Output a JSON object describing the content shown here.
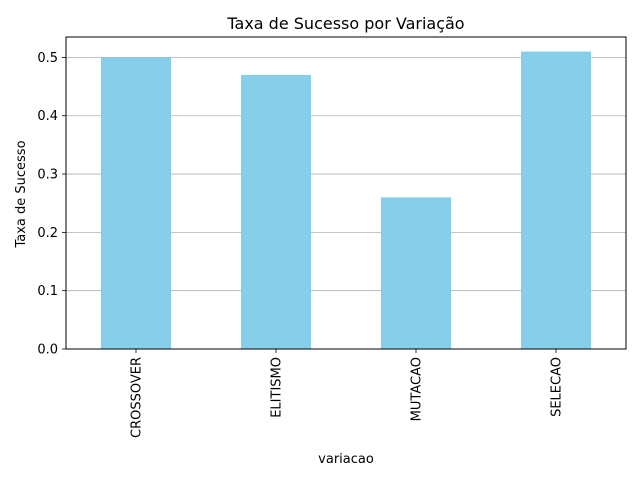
{
  "chart_data": {
    "type": "bar",
    "title": "Taxa de Sucesso por Variação",
    "xlabel": "variacao",
    "ylabel": "Taxa de Sucesso",
    "categories": [
      "CROSSOVER",
      "ELITISMO",
      "MUTACAO",
      "SELECAO"
    ],
    "values": [
      0.5,
      0.47,
      0.26,
      0.51
    ],
    "ylim": [
      0,
      0.535
    ],
    "yticks": [
      0.0,
      0.1,
      0.2,
      0.3,
      0.4,
      0.5
    ],
    "ytick_labels": [
      "0.0",
      "0.1",
      "0.2",
      "0.3",
      "0.4",
      "0.5"
    ],
    "grid": "y",
    "bar_color": "#87ceeb"
  }
}
